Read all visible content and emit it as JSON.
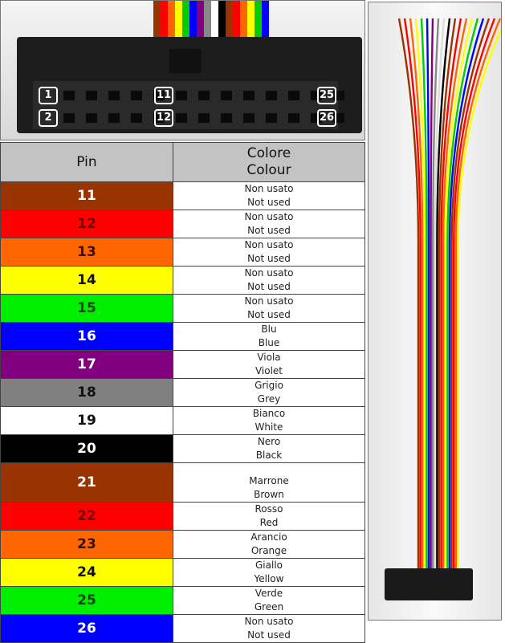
{
  "photo_labels": [
    "1",
    "2",
    "11",
    "12",
    "25",
    "26"
  ],
  "table": {
    "header_pin": "Pin",
    "header_colour_it": "Colore",
    "header_colour_en": "Colour",
    "rows": [
      {
        "pin": "11",
        "bg": "#993300",
        "fg": "#ffffff",
        "it": "Non usato",
        "en": "Not used"
      },
      {
        "pin": "12",
        "bg": "#ff0000",
        "fg": "#660000",
        "it": "Non usato",
        "en": "Not used"
      },
      {
        "pin": "13",
        "bg": "#ff6600",
        "fg": "#331100",
        "it": "Non usato",
        "en": "Not used"
      },
      {
        "pin": "14",
        "bg": "#ffff00",
        "fg": "#111111",
        "it": "Non usato",
        "en": "Not used"
      },
      {
        "pin": "15",
        "bg": "#00ee00",
        "fg": "#114411",
        "it": "Non usato",
        "en": "Not used"
      },
      {
        "pin": "16",
        "bg": "#0000ff",
        "fg": "#ffffff",
        "it": "Blu",
        "en": "Blue"
      },
      {
        "pin": "17",
        "bg": "#800080",
        "fg": "#ffffff",
        "it": "Viola",
        "en": "Violet"
      },
      {
        "pin": "18",
        "bg": "#808080",
        "fg": "#111111",
        "it": "Grigio",
        "en": "Grey"
      },
      {
        "pin": "19",
        "bg": "#ffffff",
        "fg": "#111111",
        "it": "Bianco",
        "en": "White"
      },
      {
        "pin": "20",
        "bg": "#000000",
        "fg": "#ffffff",
        "it": "Nero",
        "en": "Black"
      },
      {
        "pin": "21",
        "bg": "#993300",
        "fg": "#ffffff",
        "it": "Marrone",
        "en": "Brown"
      },
      {
        "pin": "22",
        "bg": "#ff0000",
        "fg": "#660000",
        "it": "Rosso",
        "en": "Red"
      },
      {
        "pin": "23",
        "bg": "#ff6600",
        "fg": "#331100",
        "it": "Arancio",
        "en": "Orange"
      },
      {
        "pin": "24",
        "bg": "#ffff00",
        "fg": "#111111",
        "it": "Giallo",
        "en": "Yellow"
      },
      {
        "pin": "25",
        "bg": "#00ee00",
        "fg": "#114411",
        "it": "Verde",
        "en": "Green"
      },
      {
        "pin": "26",
        "bg": "#0000ff",
        "fg": "#ffffff",
        "it": "Non usato",
        "en": "Not used"
      }
    ]
  }
}
